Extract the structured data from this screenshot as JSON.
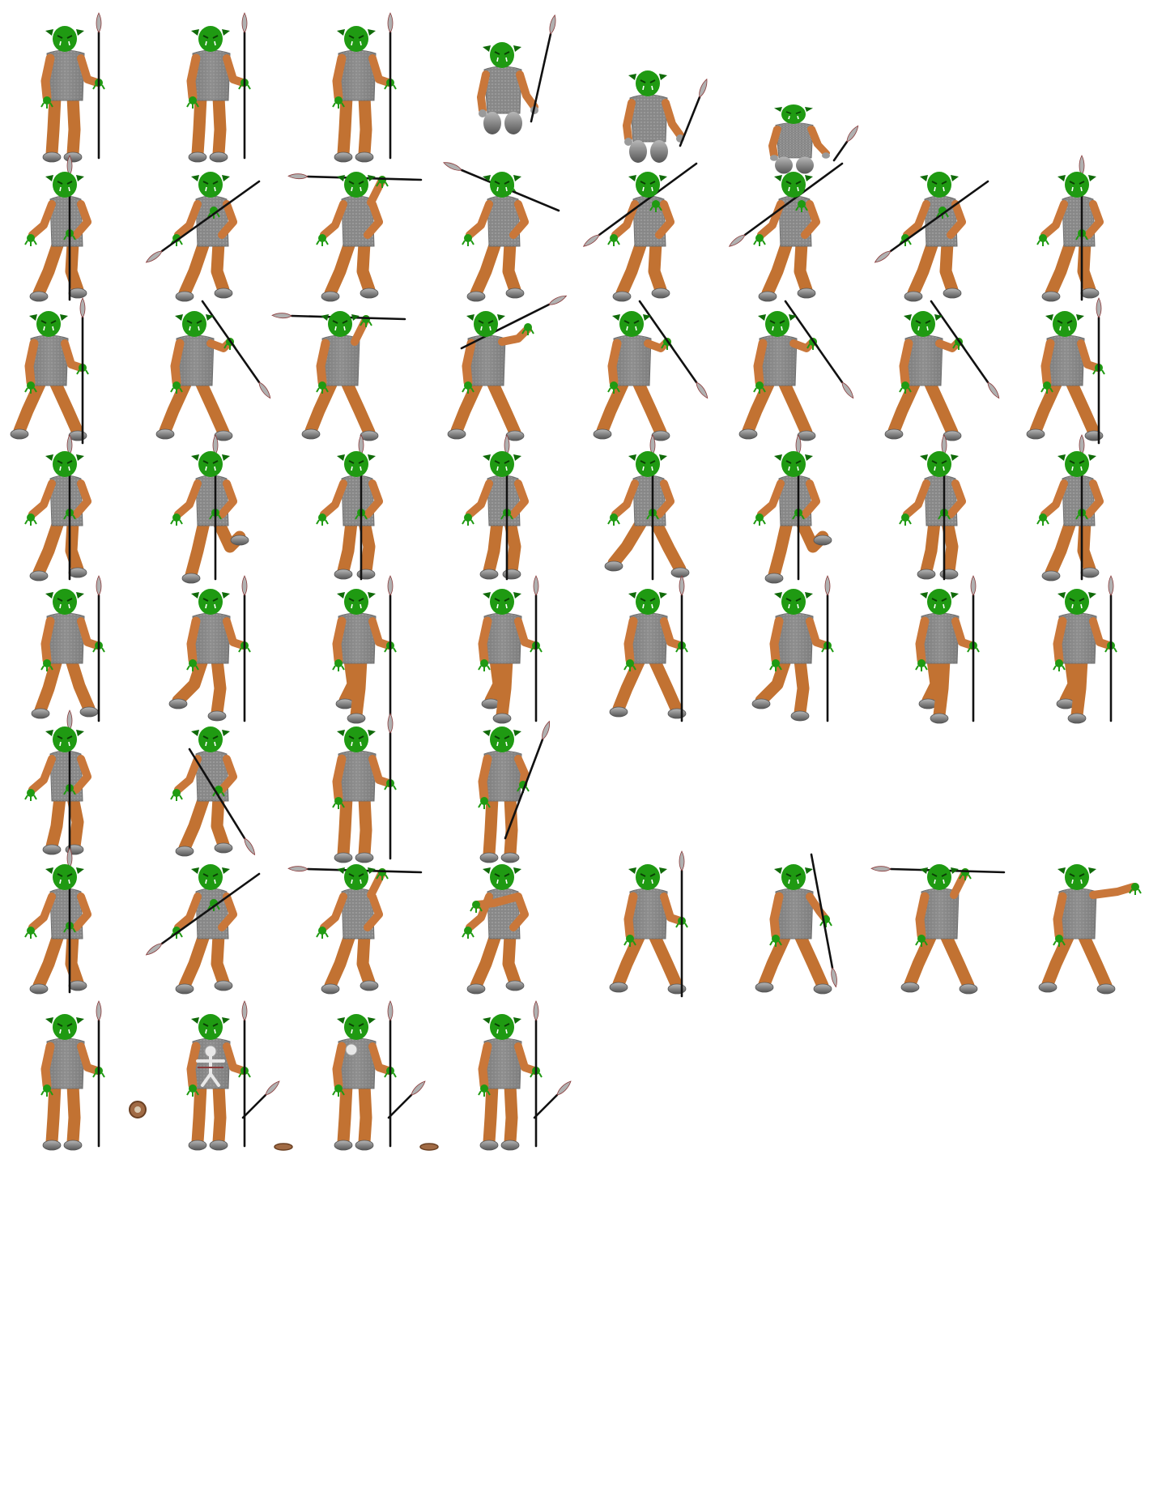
{
  "sheet": {
    "background": "#ffffff",
    "palette": {
      "skin": "#c9773a",
      "pants": "#c27232",
      "armor": "#9a9a9a",
      "armor_dark": "#6e6e6e",
      "head": "#1f9a12",
      "head_dark": "#0f6a08",
      "boot": "#808080",
      "spear_shaft": "#111111",
      "spear_tip": "#b0b0b0",
      "shield": "#a06a44"
    },
    "rows": [
      {
        "row": "death",
        "frames": [
          {
            "pose": "stand",
            "spear": "upright"
          },
          {
            "pose": "stand",
            "spear": "upright"
          },
          {
            "pose": "stand",
            "spear": "upright"
          },
          {
            "pose": "kneel",
            "spear": "tilted"
          },
          {
            "pose": "crouch",
            "spear": "falling"
          },
          {
            "pose": "collapsed",
            "spear": "dropped"
          }
        ]
      },
      {
        "row": "thrust-facing",
        "frames": [
          {
            "pose": "walk-front",
            "spear": "vertical-front"
          },
          {
            "pose": "walk-front",
            "spear": "diagonal-left"
          },
          {
            "pose": "walk-front",
            "spear": "horizontal-overhead"
          },
          {
            "pose": "walk-front",
            "spear": "diagonal-right-overhead"
          },
          {
            "pose": "walk-front",
            "spear": "diagonal-left-raised"
          },
          {
            "pose": "walk-front",
            "spear": "diagonal-left-raised"
          },
          {
            "pose": "walk-front",
            "spear": "diagonal-left"
          },
          {
            "pose": "walk-front",
            "spear": "vertical-front"
          }
        ]
      },
      {
        "row": "throw-side",
        "frames": [
          {
            "pose": "stride",
            "spear": "upright"
          },
          {
            "pose": "stride",
            "spear": "back-diagonal"
          },
          {
            "pose": "stride",
            "spear": "horizontal-overhead"
          },
          {
            "pose": "stride",
            "spear": "raised-forward"
          },
          {
            "pose": "stride",
            "spear": "back-diagonal"
          },
          {
            "pose": "stride",
            "spear": "back-diagonal"
          },
          {
            "pose": "stride",
            "spear": "back-diagonal"
          },
          {
            "pose": "stride",
            "spear": "upright"
          }
        ]
      },
      {
        "row": "walk-front",
        "frames": [
          {
            "pose": "walk-front",
            "spear": "vertical-front"
          },
          {
            "pose": "run-front",
            "spear": "vertical-front"
          },
          {
            "pose": "step-front",
            "spear": "vertical-front"
          },
          {
            "pose": "step-front",
            "spear": "vertical-front"
          },
          {
            "pose": "stride-front",
            "spear": "vertical-front"
          },
          {
            "pose": "run-front",
            "spear": "vertical-front"
          },
          {
            "pose": "step-front",
            "spear": "vertical-front"
          },
          {
            "pose": "walk-front",
            "spear": "vertical-front"
          }
        ]
      },
      {
        "row": "walk-side",
        "frames": [
          {
            "pose": "walk",
            "spear": "upright"
          },
          {
            "pose": "run",
            "spear": "upright"
          },
          {
            "pose": "step",
            "spear": "upright"
          },
          {
            "pose": "step",
            "spear": "upright"
          },
          {
            "pose": "stride",
            "spear": "upright"
          },
          {
            "pose": "run",
            "spear": "upright"
          },
          {
            "pose": "step",
            "spear": "upright"
          },
          {
            "pose": "step",
            "spear": "upright"
          }
        ]
      },
      {
        "row": "turn",
        "frames": [
          {
            "pose": "step-front",
            "spear": "vertical-front"
          },
          {
            "pose": "walk-front",
            "spear": "diagonal-down"
          },
          {
            "pose": "stand",
            "spear": "upright"
          },
          {
            "pose": "stand",
            "spear": "tilted-forward"
          }
        ]
      },
      {
        "row": "attack-mixed",
        "frames": [
          {
            "pose": "walk-front",
            "spear": "vertical-front"
          },
          {
            "pose": "walk-front",
            "spear": "diagonal-left"
          },
          {
            "pose": "walk-front",
            "spear": "horizontal-overhead"
          },
          {
            "pose": "walk-front",
            "spear": "none"
          },
          {
            "pose": "stride",
            "spear": "upright"
          },
          {
            "pose": "stride",
            "spear": "hanging-back"
          },
          {
            "pose": "stride",
            "spear": "horizontal-overhead"
          },
          {
            "pose": "stride",
            "spear": "none-arm-out"
          }
        ]
      },
      {
        "row": "special",
        "frames": [
          {
            "pose": "stand",
            "spear": "upright"
          },
          {
            "pose": "stand",
            "spear": "upright",
            "extras": [
              "shield-large",
              "spear-small",
              "skeleton"
            ]
          },
          {
            "pose": "stand",
            "spear": "upright",
            "extras": [
              "shield-flat",
              "spear-small",
              "hand-skull"
            ]
          },
          {
            "pose": "stand",
            "spear": "upright",
            "extras": [
              "shield-flat",
              "spear-small"
            ]
          }
        ]
      }
    ]
  }
}
